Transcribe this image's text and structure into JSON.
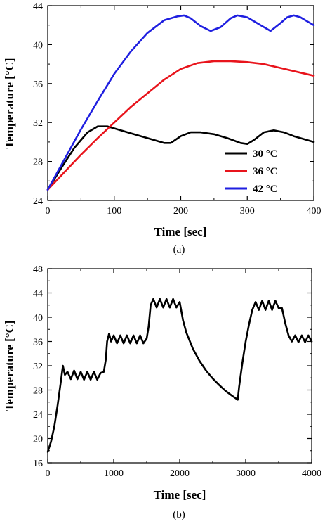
{
  "chart_data": [
    {
      "type": "line",
      "panel_label": "(a)",
      "xlabel": "Time [sec]",
      "ylabel": "Temperature [°C]",
      "xlim": [
        0,
        400
      ],
      "ylim": [
        24,
        44
      ],
      "xticks": [
        0,
        100,
        200,
        300,
        400
      ],
      "yticks": [
        24,
        28,
        32,
        36,
        40,
        44
      ],
      "legend_position": "bottom-right",
      "series": [
        {
          "name": "30 °C",
          "color": "#000000",
          "x": [
            0,
            20,
            40,
            60,
            75,
            90,
            100,
            120,
            140,
            160,
            175,
            185,
            200,
            215,
            230,
            250,
            270,
            290,
            300,
            310,
            325,
            340,
            355,
            370,
            385,
            400
          ],
          "y": [
            25.1,
            27.3,
            29.4,
            31.0,
            31.6,
            31.6,
            31.4,
            31.0,
            30.6,
            30.2,
            29.9,
            29.9,
            30.6,
            31.0,
            31.0,
            30.8,
            30.4,
            29.9,
            29.8,
            30.2,
            31.0,
            31.2,
            31.0,
            30.6,
            30.3,
            30.0
          ]
        },
        {
          "name": "36 °C",
          "color": "#e8141c",
          "x": [
            0,
            25,
            50,
            75,
            100,
            125,
            150,
            175,
            200,
            225,
            250,
            275,
            300,
            325,
            350,
            375,
            400
          ],
          "y": [
            25.1,
            26.9,
            28.7,
            30.4,
            32.0,
            33.6,
            35.0,
            36.4,
            37.5,
            38.1,
            38.3,
            38.3,
            38.2,
            38.0,
            37.6,
            37.2,
            36.8
          ]
        },
        {
          "name": "42 °C",
          "color": "#1f1fe0",
          "x": [
            0,
            25,
            50,
            75,
            100,
            125,
            150,
            175,
            195,
            205,
            215,
            230,
            245,
            260,
            275,
            285,
            300,
            320,
            335,
            350,
            360,
            370,
            380,
            390,
            400
          ],
          "y": [
            25.1,
            28.2,
            31.3,
            34.2,
            37.0,
            39.3,
            41.2,
            42.5,
            42.9,
            43.0,
            42.7,
            41.9,
            41.4,
            41.8,
            42.7,
            43.0,
            42.8,
            42.0,
            41.4,
            42.2,
            42.8,
            43.0,
            42.8,
            42.4,
            42.0
          ]
        }
      ]
    },
    {
      "type": "line",
      "panel_label": "(b)",
      "xlabel": "Time [sec]",
      "ylabel": "Temperature [°C]",
      "xlim": [
        0,
        4000
      ],
      "ylim": [
        16,
        48
      ],
      "xticks": [
        0,
        1000,
        2000,
        3000,
        4000
      ],
      "yticks": [
        16,
        20,
        24,
        28,
        32,
        36,
        40,
        44,
        48
      ],
      "series": [
        {
          "name": "",
          "color": "#000000",
          "x": [
            0,
            50,
            100,
            150,
            200,
            230,
            260,
            300,
            350,
            400,
            450,
            500,
            550,
            600,
            650,
            700,
            750,
            800,
            850,
            880,
            900,
            930,
            960,
            1000,
            1050,
            1100,
            1150,
            1200,
            1250,
            1300,
            1350,
            1400,
            1450,
            1500,
            1530,
            1560,
            1600,
            1650,
            1700,
            1750,
            1800,
            1850,
            1900,
            1950,
            2000,
            2050,
            2100,
            2200,
            2300,
            2400,
            2500,
            2600,
            2700,
            2800,
            2880,
            2900,
            2950,
            3000,
            3050,
            3100,
            3150,
            3200,
            3250,
            3300,
            3350,
            3400,
            3450,
            3500,
            3550,
            3600,
            3650,
            3700,
            3750,
            3800,
            3850,
            3900,
            3950,
            4000
          ],
          "y": [
            17.8,
            19.5,
            22.0,
            25.5,
            29.5,
            32.0,
            30.5,
            31.0,
            29.8,
            31.2,
            29.8,
            31.0,
            29.7,
            31.0,
            29.7,
            31.0,
            29.7,
            30.8,
            31.0,
            33.0,
            36.0,
            37.3,
            36.0,
            37.0,
            35.7,
            37.0,
            35.7,
            37.0,
            35.7,
            37.0,
            35.7,
            37.0,
            35.7,
            36.5,
            38.5,
            42.0,
            43.0,
            41.6,
            43.0,
            41.6,
            43.0,
            41.6,
            43.0,
            41.6,
            42.5,
            39.5,
            37.5,
            34.8,
            32.8,
            31.2,
            29.9,
            28.8,
            27.8,
            27.0,
            26.4,
            28.5,
            32.5,
            36.0,
            38.8,
            41.2,
            42.5,
            41.2,
            42.7,
            41.2,
            42.7,
            41.2,
            42.7,
            41.5,
            41.5,
            39.0,
            37.0,
            36.0,
            37.0,
            35.9,
            37.0,
            35.9,
            37.0,
            36.0
          ]
        }
      ]
    }
  ]
}
